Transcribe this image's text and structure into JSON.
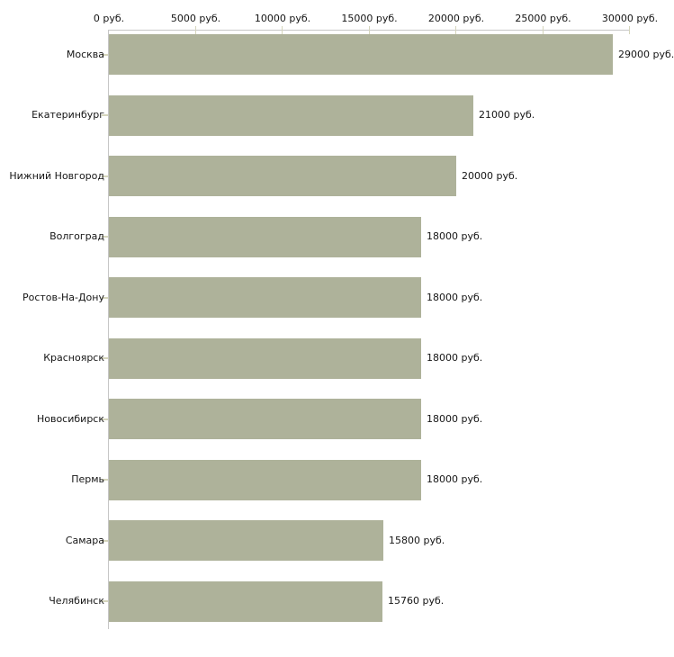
{
  "chart_data": {
    "type": "bar",
    "orientation": "horizontal",
    "title": "",
    "xlabel": "",
    "ylabel": "",
    "categories": [
      "Москва",
      "Екатеринбург",
      "Нижний Новгород",
      "Волгоград",
      "Ростов-На-Дону",
      "Красноярск",
      "Новосибирск",
      "Пермь",
      "Самара",
      "Челябинск"
    ],
    "values": [
      29000,
      21000,
      20000,
      18000,
      18000,
      18000,
      18000,
      18000,
      15800,
      15760
    ],
    "value_labels": [
      "29000 руб.",
      "21000 руб.",
      "20000 руб.",
      "18000 руб.",
      "18000 руб.",
      "18000 руб.",
      "18000 руб.",
      "18000 руб.",
      "15800 руб.",
      "15760 руб."
    ],
    "x_ticks": [
      0,
      5000,
      10000,
      15000,
      20000,
      25000,
      30000
    ],
    "x_tick_labels": [
      "0 руб.",
      "5000 руб.",
      "10000 руб.",
      "15000 руб.",
      "20000 руб.",
      "25000 руб.",
      "30000 руб."
    ],
    "xlim": [
      0,
      30000
    ],
    "grid": false,
    "legend": false,
    "axis_position": "top",
    "colors": {
      "bar": "#aeb29a",
      "axis_line": "#c6c6c6",
      "tick_mark": "#d5d5bc",
      "text": "#151515",
      "background": "#ffffff"
    }
  }
}
